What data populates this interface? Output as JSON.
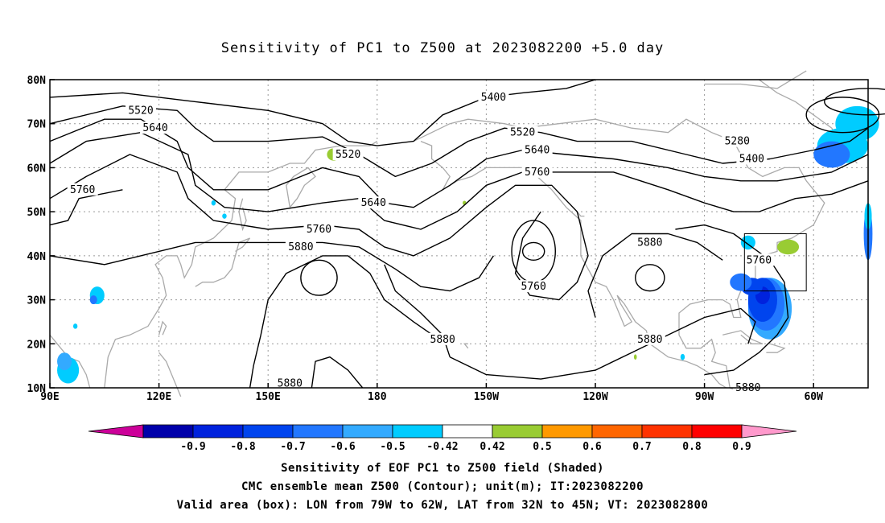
{
  "title": "Sensitivity of PC1 to Z500 at 2023082200 +5.0 day",
  "lat_labels": [
    "80N",
    "70N",
    "60N",
    "50N",
    "40N",
    "30N",
    "20N",
    "10N"
  ],
  "lon_labels": [
    "90E",
    "120E",
    "150E",
    "180",
    "150W",
    "120W",
    "90W",
    "60W"
  ],
  "contour_labels": [
    {
      "text": "5520",
      "lon": 115,
      "lat": 73
    },
    {
      "text": "5640",
      "lon": 119,
      "lat": 69
    },
    {
      "text": "5760",
      "lon": 99,
      "lat": 55
    },
    {
      "text": "5400",
      "lon": -148,
      "lat": 76
    },
    {
      "text": "5520",
      "lon": -140,
      "lat": 68
    },
    {
      "text": "5640",
      "lon": -136,
      "lat": 64
    },
    {
      "text": "5760",
      "lon": -136,
      "lat": 59
    },
    {
      "text": "5520",
      "lon": 172,
      "lat": 63
    },
    {
      "text": "5640",
      "lon": 179,
      "lat": 52
    },
    {
      "text": "5760",
      "lon": 164,
      "lat": 46
    },
    {
      "text": "5880",
      "lon": 159,
      "lat": 42
    },
    {
      "text": "5760",
      "lon": -137,
      "lat": 33
    },
    {
      "text": "5880",
      "lon": -105,
      "lat": 43
    },
    {
      "text": "5880",
      "lon": -162,
      "lat": 21
    },
    {
      "text": "5880",
      "lon": -105,
      "lat": 21
    },
    {
      "text": "5880",
      "lon": 156,
      "lat": 11
    },
    {
      "text": "5280",
      "lon": -81,
      "lat": 66
    },
    {
      "text": "5400",
      "lon": -77,
      "lat": 62
    },
    {
      "text": "5760",
      "lon": -75,
      "lat": 39
    },
    {
      "text": "5880",
      "lon": -78,
      "lat": 10
    }
  ],
  "valid_box": {
    "lon_min": -79,
    "lon_max": -62,
    "lat_min": 32,
    "lat_max": 45
  },
  "colorbar": {
    "labels": [
      "-0.9",
      "-0.8",
      "-0.7",
      "-0.6",
      "-0.5",
      "-0.42",
      "0.42",
      "0.5",
      "0.6",
      "0.7",
      "0.8",
      "0.9"
    ],
    "colors": [
      "#cc0099",
      "#0000aa",
      "#0022dd",
      "#0044ee",
      "#2277ff",
      "#33aaff",
      "#00ccff",
      "#ffffff",
      "#99cc33",
      "#ff9900",
      "#ff6600",
      "#ff3300",
      "#ff0000",
      "#ff99cc"
    ]
  },
  "caption": {
    "line1": "Sensitivity of EOF PC1 to Z500 field (Shaded)",
    "line2": "CMC ensemble mean Z500 (Contour); unit(m); IT:2023082200",
    "line3": "Valid area (box): LON from 79W to 62W, LAT from 32N to 45N; VT: 2023082800"
  }
}
